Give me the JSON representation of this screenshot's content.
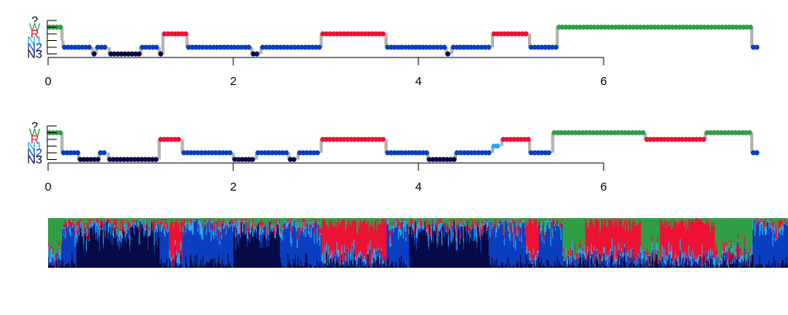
{
  "colors": {
    "W": "#2f9e44",
    "R": "#ee1133",
    "N1": "#22aaee",
    "N2": "#0a3ec0",
    "N3": "#050a45",
    "unknown": "#000000",
    "connector": "#b3b3b3",
    "axis": "#000000"
  },
  "chart_data": [
    {
      "type": "hypnogram",
      "title": "",
      "xlabel": "",
      "ylabel": "",
      "xlim": [
        0,
        7.7
      ],
      "x_ticks": [
        0,
        2,
        4,
        6
      ],
      "x_tick_labels": [
        "0",
        "2",
        "4",
        "6"
      ],
      "stage_labels": [
        "?",
        "W",
        "R",
        "N1",
        "N2",
        "N3"
      ],
      "segments": [
        {
          "stage": "W",
          "x": [
            0,
            0.15
          ]
        },
        {
          "stage": "N1",
          "x": [
            0.15,
            0.16
          ]
        },
        {
          "stage": "N2",
          "x": [
            0.16,
            0.48
          ]
        },
        {
          "stage": "N3",
          "x": [
            0.48,
            0.52
          ]
        },
        {
          "stage": "N2",
          "x": [
            0.52,
            0.66
          ]
        },
        {
          "stage": "N3",
          "x": [
            0.66,
            1.0
          ]
        },
        {
          "stage": "N2",
          "x": [
            1.0,
            1.2
          ]
        },
        {
          "stage": "N3",
          "x": [
            1.2,
            1.24
          ]
        },
        {
          "stage": "R",
          "x": [
            1.24,
            1.5
          ]
        },
        {
          "stage": "N2",
          "x": [
            1.5,
            2.2
          ]
        },
        {
          "stage": "N3",
          "x": [
            2.2,
            2.3
          ]
        },
        {
          "stage": "N2",
          "x": [
            2.3,
            2.95
          ]
        },
        {
          "stage": "R",
          "x": [
            2.95,
            3.65
          ]
        },
        {
          "stage": "N2",
          "x": [
            3.65,
            4.3
          ]
        },
        {
          "stage": "N3",
          "x": [
            4.3,
            4.36
          ]
        },
        {
          "stage": "N2",
          "x": [
            4.36,
            4.8
          ]
        },
        {
          "stage": "R",
          "x": [
            4.8,
            5.2
          ]
        },
        {
          "stage": "N2",
          "x": [
            5.2,
            5.5
          ]
        },
        {
          "stage": "W",
          "x": [
            5.5,
            7.6
          ]
        },
        {
          "stage": "N2",
          "x": [
            7.6,
            7.7
          ]
        }
      ]
    },
    {
      "type": "hypnogram",
      "title": "",
      "xlabel": "",
      "ylabel": "",
      "xlim": [
        0,
        7.7
      ],
      "x_ticks": [
        0,
        2,
        4,
        6
      ],
      "x_tick_labels": [
        "0",
        "2",
        "4",
        "6"
      ],
      "stage_labels": [
        "?",
        "W",
        "R",
        "N1",
        "N2",
        "N3"
      ],
      "segments": [
        {
          "stage": "W",
          "x": [
            0,
            0.15
          ]
        },
        {
          "stage": "N2",
          "x": [
            0.15,
            0.33
          ]
        },
        {
          "stage": "N3",
          "x": [
            0.33,
            0.55
          ]
        },
        {
          "stage": "N2",
          "x": [
            0.55,
            0.65
          ]
        },
        {
          "stage": "N3",
          "x": [
            0.65,
            1.2
          ]
        },
        {
          "stage": "R",
          "x": [
            1.2,
            1.45
          ]
        },
        {
          "stage": "N2",
          "x": [
            1.45,
            2.0
          ]
        },
        {
          "stage": "N3",
          "x": [
            2.0,
            2.25
          ]
        },
        {
          "stage": "N2",
          "x": [
            2.25,
            2.6
          ]
        },
        {
          "stage": "N3",
          "x": [
            2.6,
            2.7
          ]
        },
        {
          "stage": "N2",
          "x": [
            2.7,
            2.95
          ]
        },
        {
          "stage": "R",
          "x": [
            2.95,
            3.65
          ]
        },
        {
          "stage": "N2",
          "x": [
            3.65,
            4.1
          ]
        },
        {
          "stage": "N3",
          "x": [
            4.1,
            4.4
          ]
        },
        {
          "stage": "N2",
          "x": [
            4.4,
            4.8
          ]
        },
        {
          "stage": "N1",
          "x": [
            4.8,
            4.9
          ]
        },
        {
          "stage": "R",
          "x": [
            4.9,
            5.2
          ]
        },
        {
          "stage": "N2",
          "x": [
            5.2,
            5.45
          ]
        },
        {
          "stage": "W",
          "x": [
            5.45,
            6.45
          ]
        },
        {
          "stage": "R",
          "x": [
            6.45,
            7.1
          ]
        },
        {
          "stage": "W",
          "x": [
            7.1,
            7.6
          ]
        },
        {
          "stage": "N2",
          "x": [
            7.6,
            7.7
          ]
        }
      ]
    },
    {
      "type": "area",
      "stacking": "probability",
      "title": "",
      "xlabel": "",
      "ylabel": "",
      "xlim": [
        0,
        7.7
      ],
      "ylim": [
        0,
        1
      ],
      "series_order": [
        "W",
        "R",
        "N1",
        "N2",
        "N3"
      ],
      "dominant": [
        {
          "stage": "W",
          "x": [
            0,
            0.15
          ]
        },
        {
          "stage": "N2",
          "x": [
            0.15,
            0.3
          ]
        },
        {
          "stage": "N3",
          "x": [
            0.3,
            1.2
          ]
        },
        {
          "stage": "N2",
          "x": [
            1.2,
            1.3
          ]
        },
        {
          "stage": "R",
          "x": [
            1.3,
            1.45
          ]
        },
        {
          "stage": "N2",
          "x": [
            1.45,
            2.0
          ]
        },
        {
          "stage": "N3",
          "x": [
            2.0,
            2.5
          ]
        },
        {
          "stage": "N2",
          "x": [
            2.5,
            2.95
          ]
        },
        {
          "stage": "R",
          "x": [
            2.95,
            3.65
          ]
        },
        {
          "stage": "N2",
          "x": [
            3.65,
            3.9
          ]
        },
        {
          "stage": "N3",
          "x": [
            3.9,
            4.75
          ]
        },
        {
          "stage": "N2",
          "x": [
            4.75,
            5.15
          ]
        },
        {
          "stage": "R",
          "x": [
            5.15,
            5.3
          ]
        },
        {
          "stage": "N2",
          "x": [
            5.3,
            5.55
          ]
        },
        {
          "stage": "W",
          "x": [
            5.55,
            5.8
          ]
        },
        {
          "stage": "R",
          "x": [
            5.8,
            6.4
          ]
        },
        {
          "stage": "W",
          "x": [
            6.4,
            6.6
          ]
        },
        {
          "stage": "R",
          "x": [
            6.6,
            7.2
          ]
        },
        {
          "stage": "W",
          "x": [
            7.2,
            7.6
          ]
        },
        {
          "stage": "N2",
          "x": [
            7.6,
            7.7
          ]
        }
      ]
    }
  ]
}
